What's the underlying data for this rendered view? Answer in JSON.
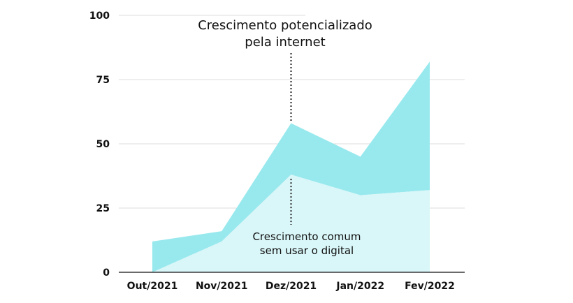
{
  "chart_data": {
    "type": "area",
    "categories": [
      "Out/2021",
      "Nov/2021",
      "Dez/2021",
      "Jan/2022",
      "Fev/2022"
    ],
    "series": [
      {
        "key": "lower",
        "values": [
          0,
          12,
          38,
          30,
          32
        ],
        "color": "#d9f6f8"
      },
      {
        "key": "upper",
        "values": [
          12,
          16,
          58,
          45,
          82
        ],
        "color": "#98e9ee"
      }
    ],
    "ylim": [
      0,
      100
    ],
    "yticks": [
      "0",
      "25",
      "50",
      "75",
      "100"
    ],
    "grid": true,
    "annotations": [
      {
        "key": "top",
        "lines": [
          "Crescimento potencializado",
          "pela internet"
        ],
        "category": "Dez/2021"
      },
      {
        "key": "bottom",
        "lines": [
          "Crescimento comum",
          "sem usar o digital"
        ],
        "category": "Dez/2021"
      }
    ]
  }
}
